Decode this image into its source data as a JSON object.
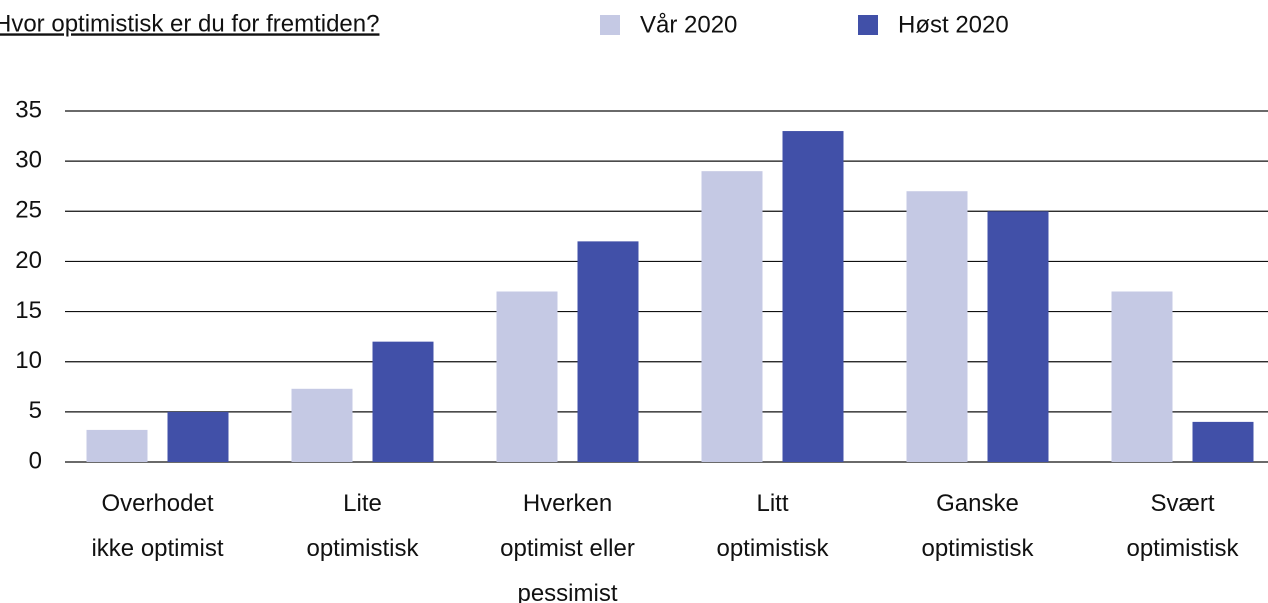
{
  "chart_data": {
    "type": "bar",
    "title": "Hvor optimistisk er du for fremtiden?",
    "categories": [
      [
        "Overhodet",
        "ikke optimist"
      ],
      [
        "Lite",
        "optimistisk"
      ],
      [
        "Hverken",
        "optimist eller",
        "pessimist"
      ],
      [
        "Litt",
        "optimistisk"
      ],
      [
        "Ganske",
        "optimistisk"
      ],
      [
        "Svært",
        "optimistisk"
      ]
    ],
    "series": [
      {
        "name": "Vår 2020",
        "color": "#c5c9e4",
        "values": [
          3.2,
          7.3,
          17,
          29,
          27,
          17
        ]
      },
      {
        "name": "Høst 2020",
        "color": "#4150a8",
        "values": [
          5,
          12,
          22,
          33,
          25,
          4
        ]
      }
    ],
    "ylim": [
      0,
      35
    ],
    "yticks": [
      0,
      5,
      10,
      15,
      20,
      25,
      30,
      35
    ],
    "grid": true
  }
}
